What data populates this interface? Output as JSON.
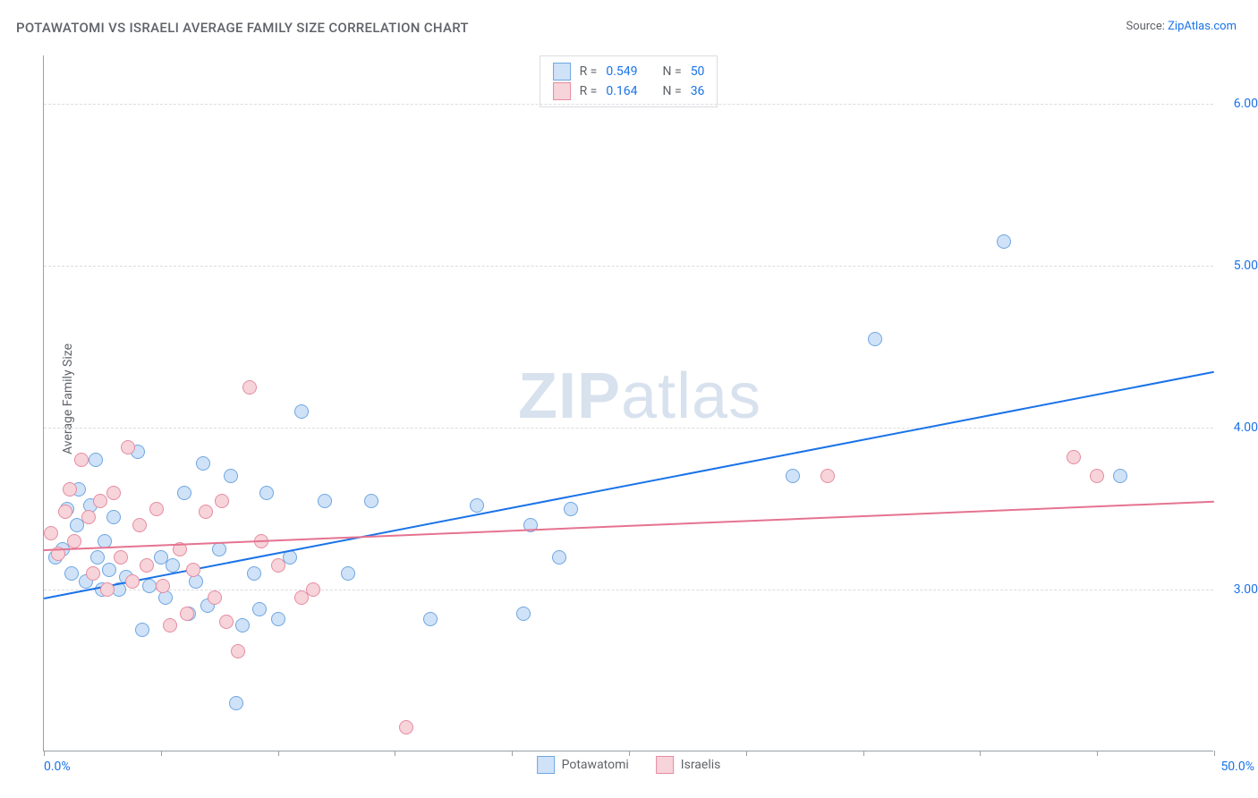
{
  "title": "POTAWATOMI VS ISRAELI AVERAGE FAMILY SIZE CORRELATION CHART",
  "source_prefix": "Source: ",
  "source_link": "ZipAtlas.com",
  "ylabel": "Average Family Size",
  "watermark_zip": "ZIP",
  "watermark_atlas": "atlas",
  "chart": {
    "type": "scatter",
    "xlim": [
      0,
      50
    ],
    "ylim": [
      2.0,
      6.3
    ],
    "x_min_label": "0.0%",
    "x_max_label": "50.0%",
    "y_ticks": [
      3.0,
      4.0,
      5.0,
      6.0
    ],
    "y_tick_labels": [
      "3.00",
      "4.00",
      "5.00",
      "6.00"
    ],
    "x_minor_ticks": [
      0,
      5,
      10,
      15,
      20,
      25,
      30,
      35,
      40,
      45,
      50
    ],
    "grid_color": "#dadce0",
    "axis_color": "#9aa0a6",
    "background_color": "#ffffff",
    "marker_radius": 8,
    "marker_stroke_width": 1.5,
    "watermark_color": "#d8e2ee",
    "series": [
      {
        "name": "Potawatomi",
        "fill": "#cfe2f8",
        "stroke": "#6fa6e0",
        "R": "0.549",
        "N": "50",
        "trend": {
          "x1": 0,
          "y1": 2.95,
          "x2": 50,
          "y2": 4.35,
          "color": "#1a73e8",
          "width": 2
        },
        "points": [
          [
            0.5,
            3.2
          ],
          [
            0.8,
            3.25
          ],
          [
            1.0,
            3.5
          ],
          [
            1.2,
            3.1
          ],
          [
            1.4,
            3.4
          ],
          [
            1.5,
            3.62
          ],
          [
            1.8,
            3.05
          ],
          [
            2.0,
            3.52
          ],
          [
            2.2,
            3.8
          ],
          [
            2.3,
            3.2
          ],
          [
            2.5,
            3.0
          ],
          [
            2.6,
            3.3
          ],
          [
            2.8,
            3.12
          ],
          [
            3.0,
            3.45
          ],
          [
            3.2,
            3.0
          ],
          [
            3.5,
            3.08
          ],
          [
            4.0,
            3.85
          ],
          [
            4.2,
            2.75
          ],
          [
            4.5,
            3.02
          ],
          [
            5.0,
            3.2
          ],
          [
            5.2,
            2.95
          ],
          [
            5.5,
            3.15
          ],
          [
            6.0,
            3.6
          ],
          [
            6.2,
            2.85
          ],
          [
            6.5,
            3.05
          ],
          [
            6.8,
            3.78
          ],
          [
            7.0,
            2.9
          ],
          [
            7.5,
            3.25
          ],
          [
            8.0,
            3.7
          ],
          [
            8.2,
            2.3
          ],
          [
            8.5,
            2.78
          ],
          [
            9.0,
            3.1
          ],
          [
            9.2,
            2.88
          ],
          [
            9.5,
            3.6
          ],
          [
            10.0,
            2.82
          ],
          [
            10.5,
            3.2
          ],
          [
            11.0,
            4.1
          ],
          [
            12.0,
            3.55
          ],
          [
            13.0,
            3.1
          ],
          [
            14.0,
            3.55
          ],
          [
            16.5,
            2.82
          ],
          [
            18.5,
            3.52
          ],
          [
            20.5,
            2.85
          ],
          [
            20.8,
            3.4
          ],
          [
            22.0,
            3.2
          ],
          [
            22.5,
            3.5
          ],
          [
            32.0,
            3.7
          ],
          [
            35.5,
            4.55
          ],
          [
            41.0,
            5.15
          ],
          [
            46.0,
            3.7
          ]
        ]
      },
      {
        "name": "Israelis",
        "fill": "#f7d3da",
        "stroke": "#e58ca0",
        "R": "0.164",
        "N": "36",
        "trend": {
          "x1": 0,
          "y1": 3.25,
          "x2": 50,
          "y2": 3.55,
          "color": "#e57390",
          "width": 2
        },
        "points": [
          [
            0.3,
            3.35
          ],
          [
            0.6,
            3.22
          ],
          [
            0.9,
            3.48
          ],
          [
            1.1,
            3.62
          ],
          [
            1.3,
            3.3
          ],
          [
            1.6,
            3.8
          ],
          [
            1.9,
            3.45
          ],
          [
            2.1,
            3.1
          ],
          [
            2.4,
            3.55
          ],
          [
            2.7,
            3.0
          ],
          [
            3.0,
            3.6
          ],
          [
            3.3,
            3.2
          ],
          [
            3.6,
            3.88
          ],
          [
            3.8,
            3.05
          ],
          [
            4.1,
            3.4
          ],
          [
            4.4,
            3.15
          ],
          [
            4.8,
            3.5
          ],
          [
            5.1,
            3.02
          ],
          [
            5.4,
            2.78
          ],
          [
            5.8,
            3.25
          ],
          [
            6.1,
            2.85
          ],
          [
            6.4,
            3.12
          ],
          [
            6.9,
            3.48
          ],
          [
            7.3,
            2.95
          ],
          [
            7.8,
            2.8
          ],
          [
            8.3,
            2.62
          ],
          [
            8.8,
            4.25
          ],
          [
            9.3,
            3.3
          ],
          [
            10.0,
            3.15
          ],
          [
            11.0,
            2.95
          ],
          [
            11.5,
            3.0
          ],
          [
            15.5,
            2.15
          ],
          [
            33.5,
            3.7
          ],
          [
            44.0,
            3.82
          ],
          [
            45.0,
            3.7
          ],
          [
            7.6,
            3.55
          ]
        ]
      }
    ]
  },
  "legend": {
    "r_label": "R =",
    "n_label": "N ="
  },
  "bottom_legend": {
    "series1": "Potawatomi",
    "series2": "Israelis"
  }
}
